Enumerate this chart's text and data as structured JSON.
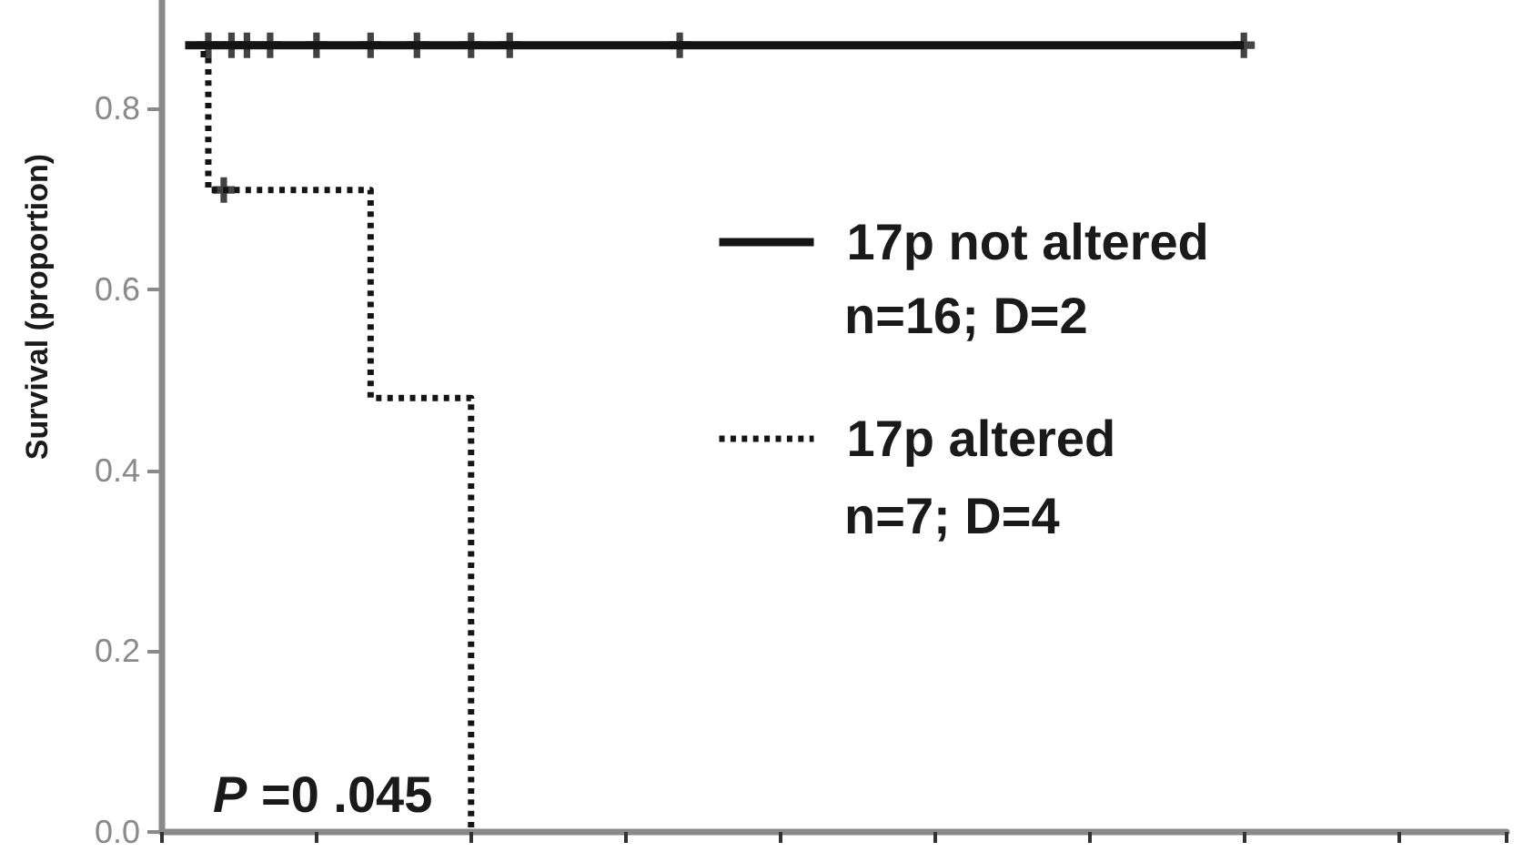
{
  "chart_data": {
    "type": "step",
    "ylabel": "Survival (proportion)",
    "categories": [
      null,
      null,
      null,
      null,
      null,
      null,
      null,
      null,
      null,
      null,
      null,
      null,
      null,
      null,
      null,
      null,
      null,
      null,
      null,
      null,
      null,
      null,
      null,
      null,
      null,
      null,
      null,
      null,
      null,
      null,
      null,
      null,
      null,
      null,
      null,
      null,
      null,
      null,
      null,
      null,
      null,
      null,
      null,
      null,
      null,
      null,
      null,
      null,
      null,
      null,
      null,
      null,
      null,
      null,
      null,
      null,
      null,
      null,
      null,
      null,
      null,
      null,
      null,
      null,
      null,
      null,
      null,
      null,
      null,
      null,
      null,
      null,
      null,
      null,
      null,
      null,
      null,
      null,
      null,
      null,
      null,
      null,
      null,
      null,
      null,
      null,
      null,
      null,
      null,
      null,
      null,
      null,
      null,
      null,
      null,
      null,
      null,
      null,
      null,
      null,
      null,
      null,
      null,
      null,
      null,
      null,
      null,
      null,
      null,
      null,
      null,
      null,
      null,
      null,
      null,
      null,
      null,
      null,
      null,
      null,
      null,
      null,
      null,
      null,
      null,
      null,
      null,
      null,
      null,
      null,
      null,
      null,
      null,
      null,
      null,
      null,
      null,
      null,
      null,
      null,
      null,
      null,
      null,
      null,
      null,
      null,
      null,
      null,
      null,
      null,
      null,
      null,
      null,
      null,
      null,
      null,
      null,
      null,
      null,
      null,
      null,
      null,
      null,
      null,
      null,
      null,
      null,
      null,
      null,
      null,
      null,
      null,
      null,
      null,
      null
    ],
    "series": [
      {
        "name": "17p not altered",
        "color": "#141414",
        "line_style": "solid",
        "marker": "none",
        "values": [
          null,
          null,
          null,
          0.87,
          0.87,
          0.87,
          0.87,
          0.87,
          0.87,
          0.87,
          0.87,
          0.87,
          0.87,
          0.87,
          0.87,
          0.87,
          0.87,
          0.87,
          0.87,
          0.87,
          0.87,
          0.87,
          0.87,
          0.87,
          0.87,
          0.87,
          0.87,
          0.87,
          0.87,
          0.87,
          0.87,
          0.87,
          0.87,
          0.87,
          0.87,
          0.87,
          0.87,
          0.87,
          0.87,
          0.87,
          0.87,
          0.87,
          0.87,
          0.87,
          0.87,
          0.87,
          0.87,
          0.87,
          0.87,
          0.87,
          0.87,
          0.87,
          0.87,
          0.87,
          0.87,
          0.87,
          0.87,
          0.87,
          0.87,
          0.87,
          0.87,
          0.87,
          0.87,
          0.87,
          0.87,
          0.87,
          0.87,
          0.87,
          0.87,
          0.87,
          0.87,
          0.87,
          0.87,
          0.87,
          0.87,
          0.87,
          0.87,
          0.87,
          0.87,
          0.87,
          0.87,
          0.87,
          0.87,
          0.87,
          0.87,
          0.87,
          0.87,
          0.87,
          0.87,
          0.87,
          0.87,
          0.87,
          0.87,
          0.87,
          0.87,
          0.87,
          0.87,
          0.87,
          0.87,
          0.87,
          0.87,
          0.87,
          0.87,
          0.87,
          0.87,
          0.87,
          0.87,
          0.87,
          0.87,
          0.87,
          0.87,
          0.87,
          0.87,
          0.87,
          0.87,
          0.87,
          0.87,
          0.87,
          0.87,
          0.87,
          0.87,
          0.87,
          0.87,
          0.87,
          0.87,
          0.87,
          0.87,
          0.87,
          0.87,
          0.87,
          0.87,
          0.87,
          0.87,
          0.87,
          0.87,
          0.87,
          0.87,
          0.87,
          0.87,
          0.87,
          0.87,
          null,
          null,
          null,
          null,
          null,
          null,
          null,
          null,
          null,
          null,
          null,
          null,
          null,
          null,
          null,
          null,
          null,
          null,
          null,
          null,
          null,
          null,
          null,
          null,
          null,
          null,
          null,
          null,
          null,
          null,
          null,
          null,
          null,
          null
        ]
      },
      {
        "name": "17p altered",
        "color": "#141414",
        "line_style": "dotted",
        "marker": "none",
        "values": [
          null,
          null,
          null,
          null,
          null,
          0.86,
          0.71,
          0.71,
          0.71,
          0.71,
          0.71,
          0.71,
          0.71,
          0.71,
          0.71,
          0.71,
          0.71,
          0.71,
          0.71,
          0.71,
          0.71,
          0.71,
          0.71,
          0.71,
          0.71,
          0.71,
          0.71,
          0.48,
          0.48,
          0.48,
          0.48,
          0.48,
          0.48,
          0.48,
          0.48,
          0.48,
          0.48,
          0.48,
          0.48,
          0.48,
          0,
          null,
          null,
          null,
          null,
          null,
          null,
          null,
          null,
          null,
          null,
          null,
          null,
          null,
          null,
          null,
          null,
          null,
          null,
          null,
          null,
          null,
          null,
          null,
          null,
          null,
          null,
          null,
          null,
          null,
          null,
          null,
          null,
          null,
          null,
          null,
          null,
          null,
          null,
          null,
          null,
          null,
          null,
          null,
          null,
          null,
          null,
          null,
          null,
          null,
          null,
          null,
          null,
          null,
          null,
          null,
          null,
          null,
          null,
          null,
          null,
          null,
          null,
          null,
          null,
          null,
          null,
          null,
          null,
          null,
          null,
          null,
          null,
          null,
          null,
          null,
          null,
          null,
          null,
          null,
          null,
          null,
          null,
          null,
          null,
          null,
          null,
          null,
          null,
          null,
          null,
          null,
          null,
          null,
          null,
          null,
          null,
          null,
          null,
          null,
          null,
          null,
          null,
          null,
          null,
          null,
          null,
          null,
          null,
          null,
          null,
          null,
          null,
          null,
          null,
          null,
          null,
          null,
          null,
          null,
          null,
          null,
          null,
          null,
          null,
          null,
          null,
          null,
          null,
          null,
          null,
          null,
          null,
          null,
          null
        ]
      },
      {
        "type": "scatter",
        "color": "#141414",
        "marker": "cross",
        "values": [
          null,
          null,
          null,
          null,
          null,
          null,
          0.87,
          null,
          null,
          0.87,
          null,
          0.87,
          null,
          null,
          0.87,
          null,
          null,
          null,
          null,
          null,
          0.87,
          null,
          null,
          null,
          null,
          null,
          null,
          0.87,
          null,
          null,
          null,
          null,
          null,
          0.87,
          null,
          null,
          null,
          null,
          null,
          null,
          0.87,
          null,
          null,
          null,
          null,
          0.87,
          null,
          null,
          null,
          null,
          null,
          null,
          null,
          null,
          null,
          null,
          null,
          null,
          null,
          null,
          null,
          null,
          null,
          null,
          null,
          null,
          null,
          0.87,
          null,
          null,
          null,
          null,
          null,
          null,
          null,
          null,
          null,
          null,
          null,
          null,
          null,
          null,
          null,
          null,
          null,
          null,
          null,
          null,
          null,
          null,
          null,
          null,
          null,
          null,
          null,
          null,
          null,
          null,
          null,
          null,
          null,
          null,
          null,
          null,
          null,
          null,
          null,
          null,
          null,
          null,
          null,
          null,
          null,
          null,
          null,
          null,
          null,
          null,
          null,
          null,
          null,
          null,
          null,
          null,
          null,
          null,
          null,
          null,
          null,
          null,
          null,
          null,
          null,
          null,
          null,
          null,
          null,
          null,
          null,
          null,
          0.87,
          null,
          null,
          null,
          null,
          null,
          null,
          null,
          null,
          null,
          null,
          null,
          null,
          null,
          null,
          null,
          null,
          null,
          null,
          null,
          null,
          null,
          null,
          null,
          null,
          null,
          null,
          null,
          null,
          null,
          null,
          null,
          null,
          null,
          null
        ]
      },
      {
        "type": "scatter",
        "color": "#141414",
        "marker": "cross",
        "values": [
          null,
          null,
          null,
          null,
          null,
          null,
          null,
          null,
          0.71,
          null,
          null,
          null,
          null,
          null,
          null,
          null,
          null,
          null,
          null,
          null,
          null,
          null,
          null,
          null,
          null,
          null,
          null,
          null,
          null,
          null,
          null,
          null,
          null,
          null,
          null,
          null,
          null,
          null,
          null,
          null,
          null,
          null,
          null,
          null,
          null,
          null,
          null,
          null,
          null,
          null,
          null,
          null,
          null,
          null,
          null,
          null,
          null,
          null,
          null,
          null,
          null,
          null,
          null,
          null,
          null,
          null,
          null,
          null,
          null,
          null,
          null,
          null,
          null,
          null,
          null,
          null,
          null,
          null,
          null,
          null,
          null,
          null,
          null,
          null,
          null,
          null,
          null,
          null,
          null,
          null,
          null,
          null,
          null,
          null,
          null,
          null,
          null,
          null,
          null,
          null,
          null,
          null,
          null,
          null,
          null,
          null,
          null,
          null,
          null,
          null,
          null,
          null,
          null,
          null,
          null,
          null,
          null,
          null,
          null,
          null,
          null,
          null,
          null,
          null,
          null,
          null,
          null,
          null,
          null,
          null,
          null,
          null,
          null,
          null,
          null,
          null,
          null,
          null,
          null,
          null,
          null,
          null,
          null,
          null,
          null,
          null,
          null,
          null,
          null,
          null,
          null,
          null,
          null,
          null,
          null,
          null,
          null,
          null,
          null,
          null,
          null,
          null,
          null,
          null,
          null,
          null,
          null,
          null,
          null,
          null,
          null,
          null,
          null,
          null,
          null
        ]
      }
    ],
    "ylim": [
      0,
      0.92
    ],
    "yticks": [
      {
        "value": 0,
        "label": "0.0"
      },
      0.2,
      0.4,
      0.6,
      0.8
    ],
    "tick_labels": "y",
    "grid": false,
    "legend": "center",
    "annotations": [
      "n=16; D=2",
      "n=7; D=4",
      "P =0 .045"
    ]
  }
}
